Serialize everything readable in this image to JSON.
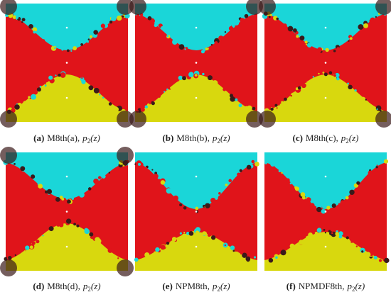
{
  "panels": [
    {
      "label": "(a)",
      "method": "M8th(a),",
      "func": "p",
      "sub": "2",
      "arg": "(z)"
    },
    {
      "label": "(b)",
      "method": "M8th(b),",
      "func": "p",
      "sub": "2",
      "arg": "(z)"
    },
    {
      "label": "(c)",
      "method": "M8th(c),",
      "func": "p",
      "sub": "2",
      "arg": "(z)"
    },
    {
      "label": "(d)",
      "method": "M8th(d),",
      "func": "p",
      "sub": "2",
      "arg": "(z)"
    },
    {
      "label": "(e)",
      "method": "NPM8th,",
      "func": "p",
      "sub": "2",
      "arg": "(z)"
    },
    {
      "label": "(f)",
      "method": "NPMDF8th,",
      "func": "p",
      "sub": "2",
      "arg": "(z)"
    }
  ]
}
